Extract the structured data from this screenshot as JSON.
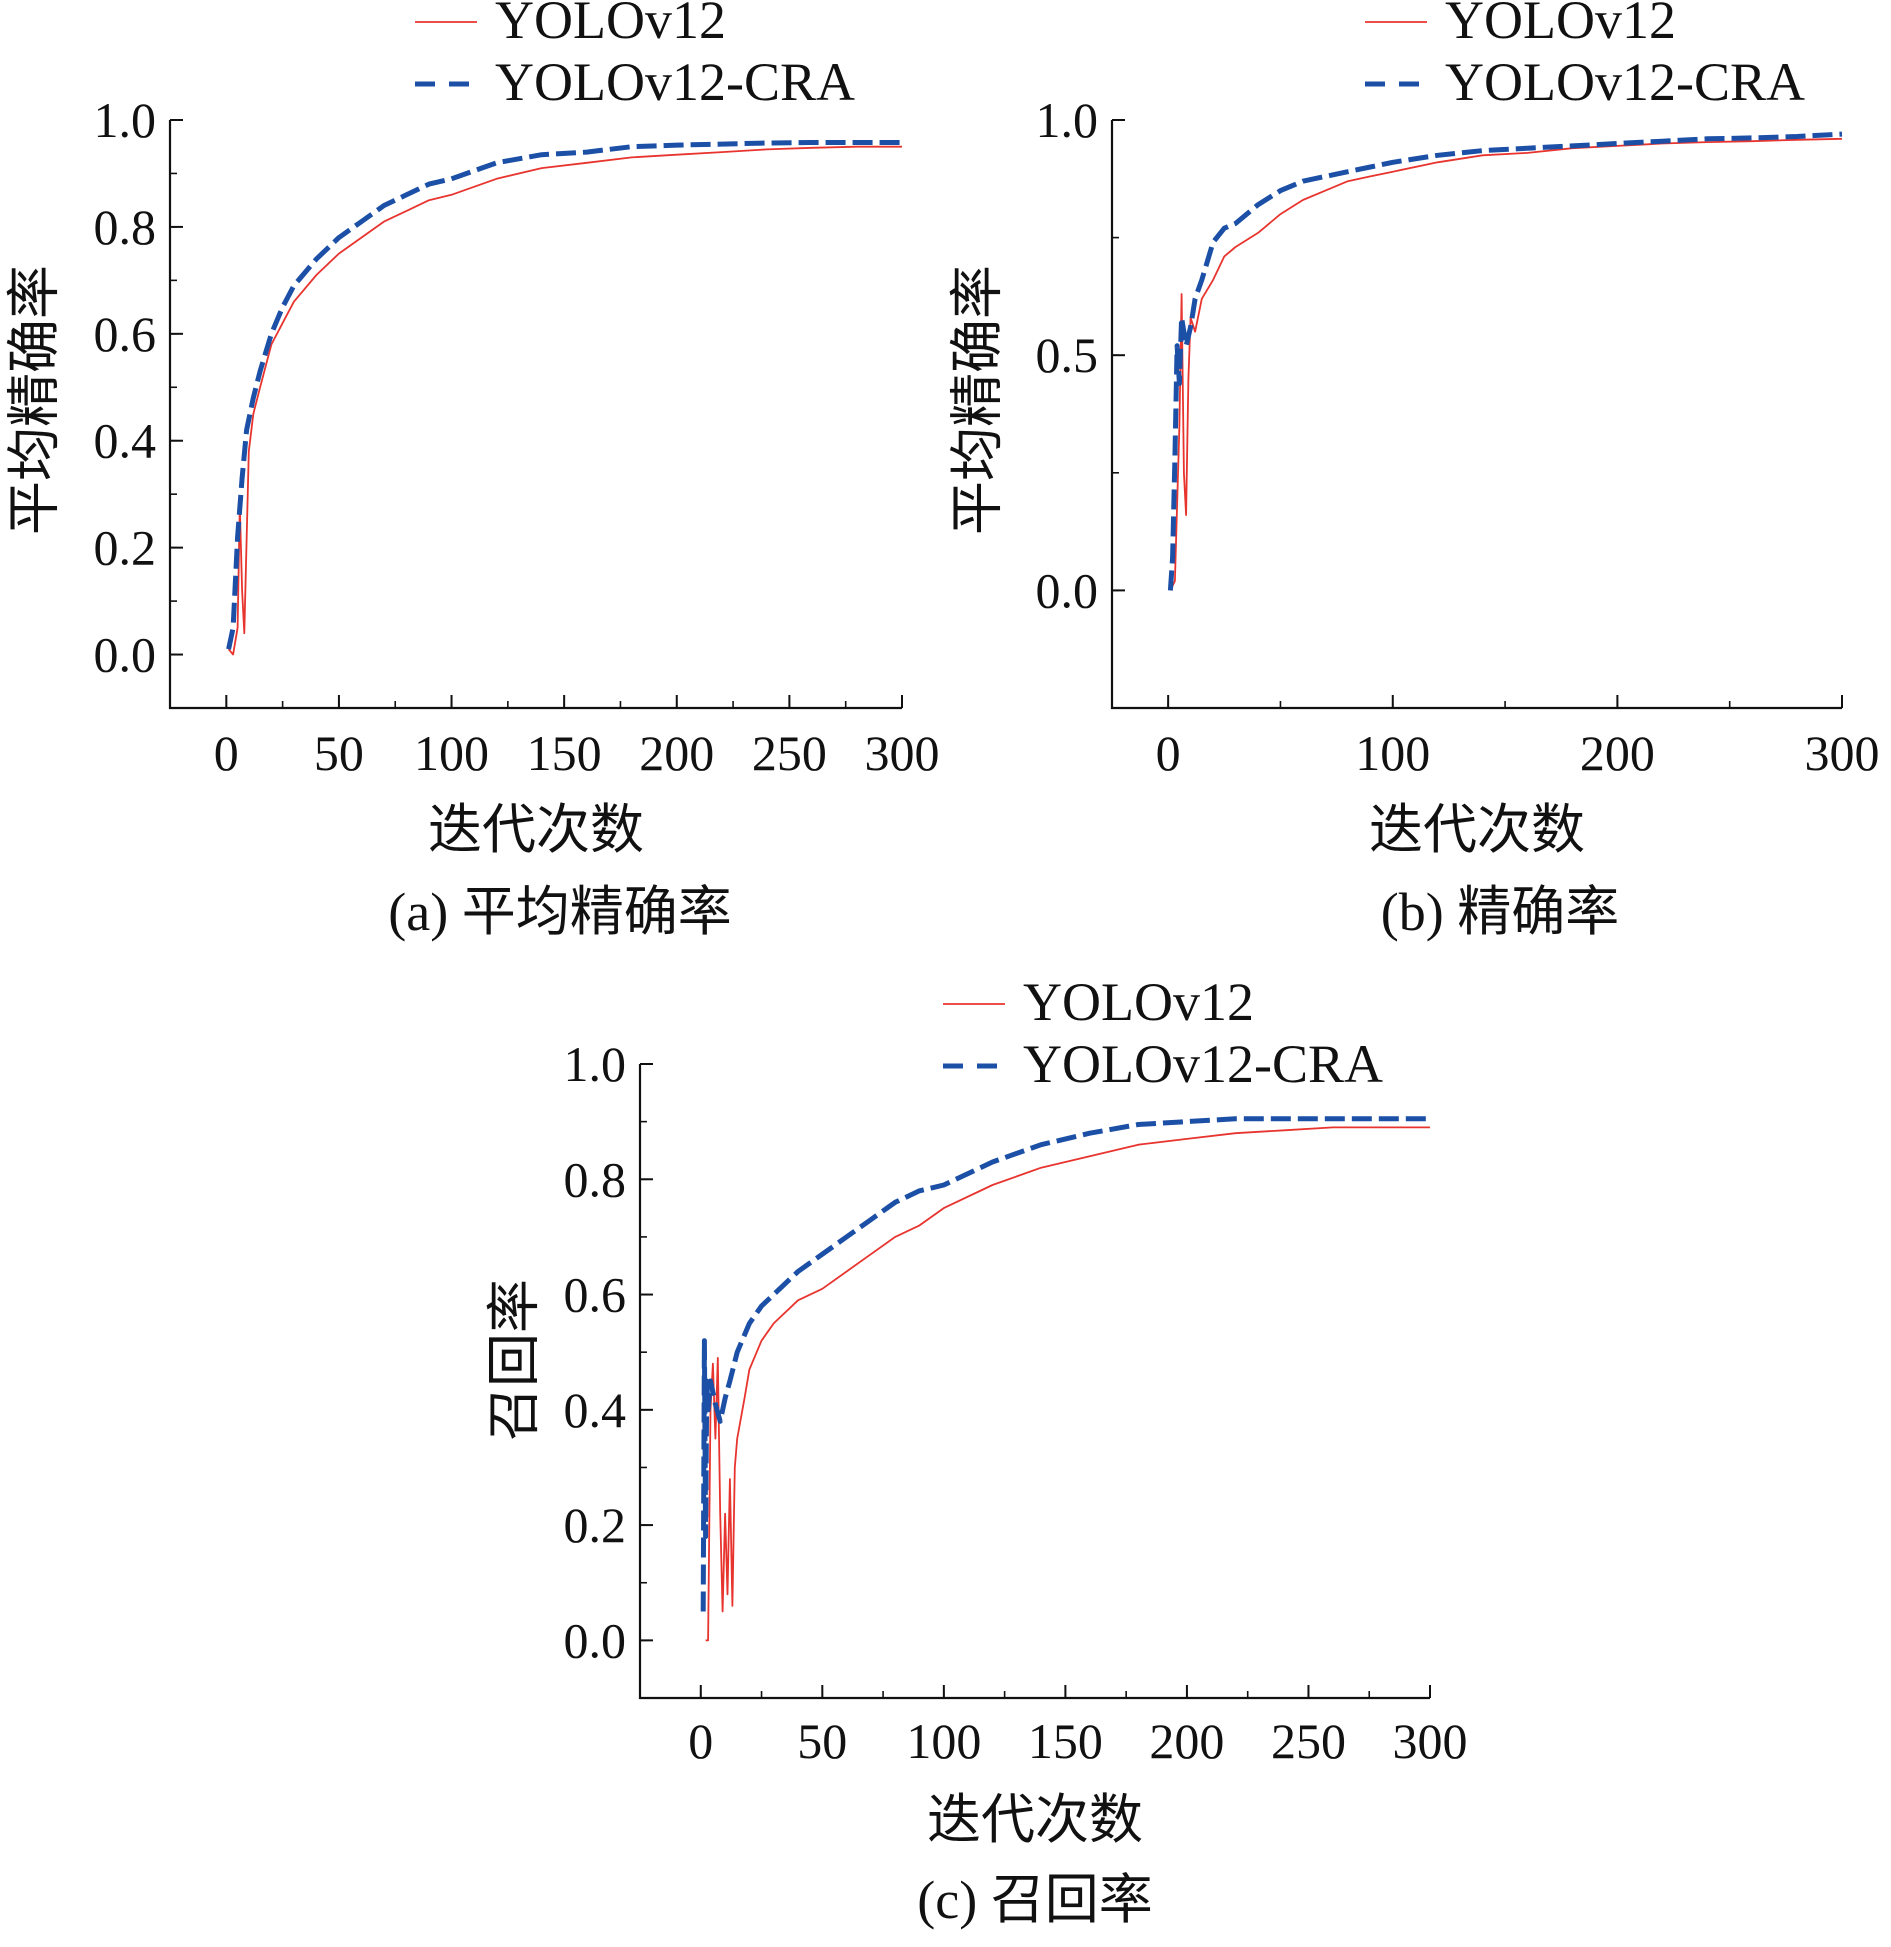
{
  "figure": {
    "panels": [
      {
        "caption": "(a) 平均精确率",
        "xlabel": "迭代次数",
        "ylabel": "平均精确率"
      },
      {
        "caption": "(b) 精确率",
        "xlabel": "迭代次数",
        "ylabel": "平均精确率"
      },
      {
        "caption": "(c) 召回率",
        "xlabel": "迭代次数",
        "ylabel": "召回率"
      }
    ]
  },
  "chart_data": [
    {
      "type": "line",
      "title": "",
      "caption": "(a) 平均精确率",
      "xlabel": "迭代次数",
      "ylabel": "平均精确率",
      "xlim": [
        -25,
        300
      ],
      "ylim": [
        -0.1,
        1.0
      ],
      "xticks": [
        "0",
        "50",
        "100",
        "150",
        "200",
        "250",
        "300"
      ],
      "yticks": [
        "0.0",
        "0.2",
        "0.4",
        "0.6",
        "0.8",
        "1.0"
      ],
      "grid": false,
      "legend_position": "top",
      "series": [
        {
          "name": "YOLOv12",
          "color": "#e8342e",
          "style": "solid",
          "x": [
            1,
            3,
            5,
            6,
            7,
            8,
            10,
            12,
            15,
            20,
            25,
            30,
            40,
            50,
            60,
            70,
            80,
            90,
            100,
            120,
            140,
            160,
            180,
            200,
            220,
            240,
            260,
            280,
            300
          ],
          "y": [
            0.01,
            0.0,
            0.05,
            0.28,
            0.12,
            0.04,
            0.38,
            0.45,
            0.5,
            0.58,
            0.62,
            0.66,
            0.71,
            0.75,
            0.78,
            0.81,
            0.83,
            0.85,
            0.86,
            0.89,
            0.91,
            0.92,
            0.93,
            0.935,
            0.94,
            0.945,
            0.948,
            0.95,
            0.95
          ]
        },
        {
          "name": "YOLOv12-CRA",
          "color": "#1c4fa6",
          "style": "dashed",
          "x": [
            1,
            3,
            5,
            7,
            9,
            12,
            15,
            20,
            25,
            30,
            40,
            50,
            60,
            70,
            80,
            90,
            100,
            120,
            140,
            160,
            180,
            200,
            220,
            240,
            260,
            280,
            300
          ],
          "y": [
            0.01,
            0.05,
            0.22,
            0.33,
            0.42,
            0.48,
            0.53,
            0.6,
            0.65,
            0.69,
            0.74,
            0.78,
            0.81,
            0.84,
            0.86,
            0.88,
            0.89,
            0.92,
            0.935,
            0.94,
            0.95,
            0.953,
            0.955,
            0.957,
            0.958,
            0.958,
            0.958
          ]
        }
      ]
    },
    {
      "type": "line",
      "title": "",
      "caption": "(b) 精确率",
      "xlabel": "迭代次数",
      "ylabel": "平均精确率",
      "xlim": [
        -25,
        300
      ],
      "ylim": [
        -0.25,
        1.0
      ],
      "xticks": [
        "0",
        "100",
        "200",
        "300"
      ],
      "yticks": [
        "0.0",
        "0.5",
        "1.0"
      ],
      "grid": false,
      "legend_position": "top",
      "series": [
        {
          "name": "YOLOv12",
          "color": "#e8342e",
          "style": "solid",
          "x": [
            1,
            3,
            5,
            6,
            7,
            8,
            9,
            10,
            12,
            15,
            20,
            25,
            30,
            40,
            50,
            60,
            70,
            80,
            90,
            100,
            120,
            140,
            160,
            180,
            200,
            220,
            240,
            260,
            280,
            300
          ],
          "y": [
            0.0,
            0.02,
            0.35,
            0.63,
            0.25,
            0.16,
            0.45,
            0.58,
            0.55,
            0.62,
            0.66,
            0.71,
            0.73,
            0.76,
            0.8,
            0.83,
            0.85,
            0.87,
            0.88,
            0.89,
            0.91,
            0.925,
            0.93,
            0.94,
            0.945,
            0.95,
            0.953,
            0.955,
            0.958,
            0.96
          ]
        },
        {
          "name": "YOLOv12-CRA",
          "color": "#1c4fa6",
          "style": "dashed",
          "x": [
            1,
            2,
            3,
            4,
            5,
            6,
            8,
            10,
            12,
            15,
            20,
            25,
            30,
            40,
            50,
            60,
            70,
            80,
            90,
            100,
            120,
            140,
            160,
            180,
            200,
            220,
            240,
            260,
            280,
            300
          ],
          "y": [
            0.0,
            0.07,
            0.28,
            0.52,
            0.44,
            0.58,
            0.52,
            0.56,
            0.62,
            0.66,
            0.74,
            0.77,
            0.78,
            0.82,
            0.85,
            0.87,
            0.88,
            0.89,
            0.9,
            0.91,
            0.925,
            0.935,
            0.94,
            0.945,
            0.95,
            0.955,
            0.96,
            0.962,
            0.965,
            0.97
          ]
        }
      ]
    },
    {
      "type": "line",
      "title": "",
      "caption": "(c) 召回率",
      "xlabel": "迭代次数",
      "ylabel": "召回率",
      "xlim": [
        -25,
        300
      ],
      "ylim": [
        -0.1,
        1.0
      ],
      "xticks": [
        "0",
        "50",
        "100",
        "150",
        "200",
        "250",
        "300"
      ],
      "yticks": [
        "0.0",
        "0.2",
        "0.4",
        "0.6",
        "0.8",
        "1.0"
      ],
      "grid": false,
      "legend_position": "top",
      "series": [
        {
          "name": "YOLOv12",
          "color": "#e8342e",
          "style": "solid",
          "x": [
            2,
            3,
            4,
            5,
            6,
            7,
            8,
            9,
            10,
            11,
            12,
            13,
            14,
            15,
            18,
            20,
            25,
            30,
            40,
            50,
            60,
            70,
            80,
            90,
            100,
            120,
            140,
            160,
            180,
            200,
            220,
            240,
            260,
            280,
            300
          ],
          "y": [
            0.0,
            0.0,
            0.4,
            0.48,
            0.35,
            0.49,
            0.22,
            0.05,
            0.22,
            0.08,
            0.28,
            0.06,
            0.3,
            0.35,
            0.42,
            0.47,
            0.52,
            0.55,
            0.59,
            0.61,
            0.64,
            0.67,
            0.7,
            0.72,
            0.75,
            0.79,
            0.82,
            0.84,
            0.86,
            0.87,
            0.88,
            0.885,
            0.89,
            0.89,
            0.89
          ]
        },
        {
          "name": "YOLOv12-CRA",
          "color": "#1c4fa6",
          "style": "dashed",
          "x": [
            1,
            1.5,
            2,
            2.5,
            3,
            4,
            6,
            8,
            10,
            12,
            15,
            20,
            25,
            30,
            40,
            50,
            60,
            70,
            80,
            90,
            100,
            120,
            140,
            160,
            180,
            200,
            220,
            240,
            260,
            280,
            300
          ],
          "y": [
            0.05,
            0.52,
            0.18,
            0.45,
            0.4,
            0.45,
            0.41,
            0.38,
            0.42,
            0.45,
            0.5,
            0.55,
            0.58,
            0.6,
            0.64,
            0.67,
            0.7,
            0.73,
            0.76,
            0.78,
            0.79,
            0.83,
            0.86,
            0.88,
            0.895,
            0.9,
            0.905,
            0.905,
            0.905,
            0.905,
            0.905
          ]
        }
      ]
    }
  ]
}
